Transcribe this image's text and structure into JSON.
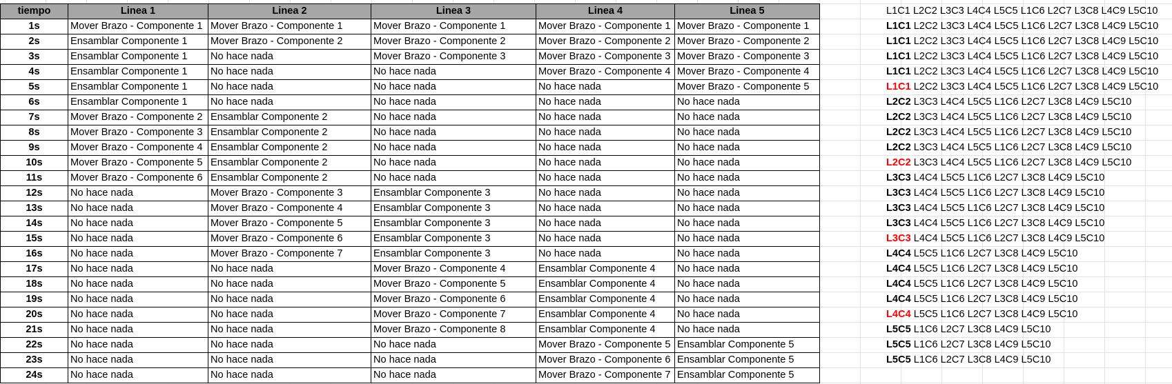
{
  "headers": [
    "tiempo",
    "Linea 1",
    "Linea 2",
    "Linea 3",
    "Linea 4",
    "Linea 5"
  ],
  "rows": [
    [
      "1s",
      "Mover Brazo - Componente 1",
      "Mover Brazo - Componente 1",
      "Mover Brazo - Componente 1",
      "Mover Brazo - Componente 1",
      "Mover Brazo - Componente 1"
    ],
    [
      "2s",
      "Ensamblar Componente 1",
      "Mover Brazo - Componente 2",
      "Mover Brazo - Componente 2",
      "Mover Brazo - Componente 2",
      "Mover Brazo - Componente 2"
    ],
    [
      "3s",
      "Ensamblar Componente 1",
      "No hace nada",
      "Mover Brazo - Componente 3",
      "Mover Brazo - Componente 3",
      "Mover Brazo - Componente 3"
    ],
    [
      "4s",
      "Ensamblar Componente 1",
      "No hace nada",
      "No hace nada",
      "Mover Brazo - Componente 4",
      "Mover Brazo - Componente 4"
    ],
    [
      "5s",
      "Ensamblar Componente 1",
      "No hace nada",
      "No hace nada",
      "No hace nada",
      "Mover Brazo - Componente 5"
    ],
    [
      "6s",
      "Ensamblar Componente 1",
      "No hace nada",
      "No hace nada",
      "No hace nada",
      "No hace nada"
    ],
    [
      "7s",
      "Mover Brazo - Componente 2",
      "Ensamblar Componente 2",
      "No hace nada",
      "No hace nada",
      "No hace nada"
    ],
    [
      "8s",
      "Mover Brazo - Componente 3",
      "Ensamblar Componente 2",
      "No hace nada",
      "No hace nada",
      "No hace nada"
    ],
    [
      "9s",
      "Mover Brazo - Componente 4",
      "Ensamblar Componente 2",
      "No hace nada",
      "No hace nada",
      "No hace nada"
    ],
    [
      "10s",
      "Mover Brazo - Componente 5",
      "Ensamblar Componente 2",
      "No hace nada",
      "No hace nada",
      "No hace nada"
    ],
    [
      "11s",
      "Mover Brazo - Componente 6",
      "Ensamblar Componente 2",
      "No hace nada",
      "No hace nada",
      "No hace nada"
    ],
    [
      "12s",
      "No hace nada",
      "Mover Brazo - Componente 3",
      "Ensamblar Componente 3",
      "No hace nada",
      "No hace nada"
    ],
    [
      "13s",
      "No hace nada",
      "Mover Brazo - Componente 4",
      "Ensamblar Componente 3",
      "No hace nada",
      "No hace nada"
    ],
    [
      "14s",
      "No hace nada",
      "Mover Brazo - Componente 5",
      "Ensamblar Componente 3",
      "No hace nada",
      "No hace nada"
    ],
    [
      "15s",
      "No hace nada",
      "Mover Brazo - Componente 6",
      "Ensamblar Componente 3",
      "No hace nada",
      "No hace nada"
    ],
    [
      "16s",
      "No hace nada",
      "Mover Brazo - Componente 7",
      "Ensamblar Componente 3",
      "No hace nada",
      "No hace nada"
    ],
    [
      "17s",
      "No hace nada",
      "No hace nada",
      "Mover Brazo - Componente 4",
      "Ensamblar Componente 4",
      "No hace nada"
    ],
    [
      "18s",
      "No hace nada",
      "No hace nada",
      "Mover Brazo - Componente 5",
      "Ensamblar Componente 4",
      "No hace nada"
    ],
    [
      "19s",
      "No hace nada",
      "No hace nada",
      "Mover Brazo - Componente 6",
      "Ensamblar Componente 4",
      "No hace nada"
    ],
    [
      "20s",
      "No hace nada",
      "No hace nada",
      "Mover Brazo - Componente 7",
      "Ensamblar Componente 4",
      "No hace nada"
    ],
    [
      "21s",
      "No hace nada",
      "No hace nada",
      "Mover Brazo - Componente 8",
      "Ensamblar Componente 4",
      "No hace nada"
    ],
    [
      "22s",
      "No hace nada",
      "No hace nada",
      "No hace nada",
      "Mover Brazo - Componente 5",
      "Ensamblar Componente 5"
    ],
    [
      "23s",
      "No hace nada",
      "No hace nada",
      "No hace nada",
      "Mover Brazo - Componente 6",
      "Ensamblar Componente 5"
    ],
    [
      "24s",
      "No hace nada",
      "No hace nada",
      "No hace nada",
      "Mover Brazo - Componente 7",
      "Ensamblar Componente 5"
    ]
  ],
  "side_lines": [
    {
      "first": "L1C1",
      "rest": " L2C2 L3C3 L4C4 L5C5 L1C6 L2C7 L3C8 L4C9 L5C10",
      "bold": false,
      "red": false
    },
    {
      "first": "L1C1",
      "rest": " L2C2 L3C3 L4C4 L5C5 L1C6 L2C7 L3C8 L4C9 L5C10",
      "bold": true,
      "red": false
    },
    {
      "first": "L1C1",
      "rest": " L2C2 L3C3 L4C4 L5C5 L1C6 L2C7 L3C8 L4C9 L5C10",
      "bold": true,
      "red": false
    },
    {
      "first": "L1C1",
      "rest": " L2C2 L3C3 L4C4 L5C5 L1C6 L2C7 L3C8 L4C9 L5C10",
      "bold": true,
      "red": false
    },
    {
      "first": "L1C1",
      "rest": " L2C2 L3C3 L4C4 L5C5 L1C6 L2C7 L3C8 L4C9 L5C10",
      "bold": true,
      "red": false
    },
    {
      "first": "L1C1",
      "rest": " L2C2 L3C3 L4C4 L5C5 L1C6 L2C7 L3C8 L4C9 L5C10",
      "bold": true,
      "red": true
    },
    {
      "first": "L2C2",
      "rest": " L3C3 L4C4 L5C5 L1C6 L2C7 L3C8 L4C9 L5C10",
      "bold": true,
      "red": false
    },
    {
      "first": "L2C2",
      "rest": " L3C3 L4C4 L5C5 L1C6 L2C7 L3C8 L4C9 L5C10",
      "bold": true,
      "red": false
    },
    {
      "first": "L2C2",
      "rest": " L3C3 L4C4 L5C5 L1C6 L2C7 L3C8 L4C9 L5C10",
      "bold": true,
      "red": false
    },
    {
      "first": "L2C2",
      "rest": " L3C3 L4C4 L5C5 L1C6 L2C7 L3C8 L4C9 L5C10",
      "bold": true,
      "red": false
    },
    {
      "first": "L2C2",
      "rest": " L3C3 L4C4 L5C5 L1C6 L2C7 L3C8 L4C9 L5C10",
      "bold": true,
      "red": true
    },
    {
      "first": "L3C3",
      "rest": " L4C4 L5C5 L1C6 L2C7 L3C8 L4C9 L5C10",
      "bold": true,
      "red": false
    },
    {
      "first": "L3C3",
      "rest": " L4C4 L5C5 L1C6 L2C7 L3C8 L4C9 L5C10",
      "bold": true,
      "red": false
    },
    {
      "first": "L3C3",
      "rest": " L4C4 L5C5 L1C6 L2C7 L3C8 L4C9 L5C10",
      "bold": true,
      "red": false
    },
    {
      "first": "L3C3",
      "rest": " L4C4 L5C5 L1C6 L2C7 L3C8 L4C9 L5C10",
      "bold": true,
      "red": false
    },
    {
      "first": "L3C3",
      "rest": " L4C4 L5C5 L1C6 L2C7 L3C8 L4C9 L5C10",
      "bold": true,
      "red": true
    },
    {
      "first": "L4C4",
      "rest": " L5C5 L1C6 L2C7 L3C8 L4C9 L5C10",
      "bold": true,
      "red": false
    },
    {
      "first": "L4C4",
      "rest": " L5C5 L1C6 L2C7 L3C8 L4C9 L5C10",
      "bold": true,
      "red": false
    },
    {
      "first": "L4C4",
      "rest": " L5C5 L1C6 L2C7 L3C8 L4C9 L5C10",
      "bold": true,
      "red": false
    },
    {
      "first": "L4C4",
      "rest": " L5C5 L1C6 L2C7 L3C8 L4C9 L5C10",
      "bold": true,
      "red": false
    },
    {
      "first": "L4C4",
      "rest": " L5C5 L1C6 L2C7 L3C8 L4C9 L5C10",
      "bold": true,
      "red": true
    },
    {
      "first": "L5C5",
      "rest": " L1C6 L2C7 L3C8 L4C9 L5C10",
      "bold": true,
      "red": false
    },
    {
      "first": "L5C5",
      "rest": " L1C6 L2C7 L3C8 L4C9 L5C10",
      "bold": true,
      "red": false
    },
    {
      "first": "L5C5",
      "rest": " L1C6 L2C7 L3C8 L4C9 L5C10",
      "bold": true,
      "red": false
    }
  ],
  "colors": {
    "header_bg": "#a6a6a6",
    "highlight": "#ff0000",
    "grid": "#e3e3e3"
  }
}
